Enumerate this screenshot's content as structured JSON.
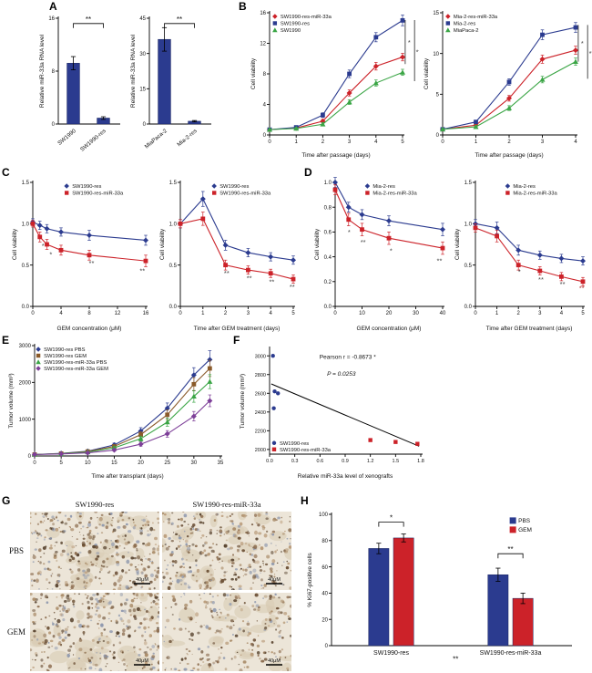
{
  "figure": {
    "labels": {
      "a": "A",
      "b": "B",
      "c": "C",
      "d": "D",
      "e": "E",
      "f": "F",
      "g": "G",
      "h": "H"
    }
  },
  "panel_g": {
    "columns": [
      "SW1990-res",
      "SW1990-res-miR-33a"
    ],
    "rows": [
      "PBS",
      "GEM"
    ],
    "scalebar": "40μM"
  },
  "chart_data": [
    {
      "id": "a-left",
      "type": "bar",
      "categories": [
        "SW1990",
        "SW1990-res"
      ],
      "values": [
        9.2,
        0.9
      ],
      "errors": [
        1.0,
        0.2
      ],
      "bar_color": "#2b3b8f",
      "rotate_cats": true,
      "ylabel": "Relative miR-33a RNA level",
      "ylim": [
        0,
        16
      ],
      "yticks": [
        0,
        8,
        16
      ],
      "m": {
        "l": 24,
        "r": 6,
        "t": 12,
        "b": 34
      },
      "brackets": [
        {
          "a": 0,
          "b": 1,
          "fy": 0.05,
          "label": "**"
        }
      ]
    },
    {
      "id": "a-right",
      "type": "bar",
      "categories": [
        "MiaPaca-2",
        "Mia-2-res"
      ],
      "values": [
        36,
        1.2
      ],
      "errors": [
        5,
        0.3
      ],
      "bar_color": "#2b3b8f",
      "rotate_cats": true,
      "ylabel": "Relative miR-33a RNA level",
      "ylim": [
        0,
        45
      ],
      "yticks": [
        0,
        15,
        30,
        45
      ],
      "m": {
        "l": 24,
        "r": 6,
        "t": 12,
        "b": 34
      },
      "brackets": [
        {
          "a": 0,
          "b": 1,
          "fy": 0.05,
          "label": "**"
        }
      ]
    },
    {
      "id": "b-left",
      "type": "line",
      "x": [
        0,
        1,
        2,
        3,
        4,
        5
      ],
      "series": [
        {
          "name": "SW1990-res-miR-33a",
          "color": "#cc2229",
          "marker": "diamond",
          "values": [
            0.7,
            0.9,
            1.8,
            5.5,
            9.0,
            10.2
          ],
          "errors": [
            0.15,
            0.15,
            0.25,
            0.4,
            0.5,
            0.5
          ]
        },
        {
          "name": "SW1990-res",
          "color": "#2b3b8f",
          "marker": "square",
          "values": [
            0.7,
            1.0,
            2.6,
            8.0,
            12.8,
            15.0
          ],
          "errors": [
            0.15,
            0.15,
            0.3,
            0.5,
            0.6,
            0.7
          ]
        },
        {
          "name": "SW1990",
          "color": "#3aa545",
          "marker": "triangle",
          "values": [
            0.7,
            0.85,
            1.4,
            4.3,
            6.8,
            8.2
          ],
          "errors": [
            0.1,
            0.1,
            0.2,
            0.3,
            0.4,
            0.4
          ]
        }
      ],
      "xlabel": "Time after passage (days)",
      "ylabel": "Cell viability",
      "xlim": [
        0,
        5
      ],
      "xticks": [
        0,
        1,
        2,
        3,
        4,
        5
      ],
      "ylim": [
        0,
        16
      ],
      "yticks": [
        0,
        4,
        8,
        12,
        16
      ],
      "m": {
        "l": 24,
        "r": 18,
        "t": 6,
        "b": 26
      },
      "legend": {
        "fx": 0.04,
        "fy": 0.0,
        "dy": 7.5
      },
      "vlines": [
        {
          "fx": 1.02,
          "fy1": 0.06,
          "fy2": 0.42
        },
        {
          "fx": 1.09,
          "fy1": 0.06,
          "fy2": 0.56
        }
      ],
      "notes": [
        {
          "fx": 1.05,
          "fy": 0.26,
          "text": "*"
        },
        {
          "fx": 1.12,
          "fy": 0.34,
          "text": "**"
        }
      ]
    },
    {
      "id": "b-right",
      "type": "line",
      "x": [
        0,
        1,
        2,
        3,
        4
      ],
      "series": [
        {
          "name": "Mia-2-res-miR-33a",
          "color": "#cc2229",
          "marker": "diamond",
          "values": [
            0.7,
            1.2,
            4.5,
            9.3,
            10.4
          ],
          "errors": [
            0.15,
            0.2,
            0.35,
            0.5,
            0.5
          ]
        },
        {
          "name": "Mia-2-res",
          "color": "#2b3b8f",
          "marker": "square",
          "values": [
            0.7,
            1.6,
            6.5,
            12.3,
            13.2
          ],
          "errors": [
            0.15,
            0.2,
            0.4,
            0.6,
            0.6
          ]
        },
        {
          "name": "MiaPaca-2",
          "color": "#3aa545",
          "marker": "triangle",
          "values": [
            0.7,
            1.0,
            3.3,
            6.8,
            9.0
          ],
          "errors": [
            0.1,
            0.15,
            0.3,
            0.4,
            0.45
          ]
        }
      ],
      "xlabel": "Time after passage (days)",
      "ylabel": "Cell viability",
      "xlim": [
        0,
        4
      ],
      "xticks": [
        0,
        1,
        2,
        3,
        4
      ],
      "ylim": [
        0,
        15
      ],
      "yticks": [
        0,
        5,
        10,
        15
      ],
      "m": {
        "l": 24,
        "r": 18,
        "t": 6,
        "b": 26
      },
      "legend": {
        "fx": 0.04,
        "fy": 0.0,
        "dy": 7.5
      },
      "vlines": [
        {
          "fx": 1.02,
          "fy1": 0.1,
          "fy2": 0.4
        },
        {
          "fx": 1.09,
          "fy1": 0.1,
          "fy2": 0.54
        }
      ],
      "notes": [
        {
          "fx": 1.05,
          "fy": 0.27,
          "text": "*"
        },
        {
          "fx": 1.12,
          "fy": 0.35,
          "text": "**"
        }
      ]
    },
    {
      "id": "c-left",
      "type": "line",
      "x": [
        0,
        1,
        2,
        4,
        8,
        16
      ],
      "series": [
        {
          "name": "SW1990-res",
          "color": "#2b3b8f",
          "marker": "diamond",
          "values": [
            1.02,
            0.98,
            0.94,
            0.9,
            0.86,
            0.8
          ],
          "errors": [
            0.04,
            0.05,
            0.05,
            0.05,
            0.06,
            0.06
          ]
        },
        {
          "name": "SW1990-res-miR-33a",
          "color": "#cc2229",
          "marker": "square",
          "values": [
            1.0,
            0.84,
            0.75,
            0.68,
            0.62,
            0.55
          ],
          "errors": [
            0.04,
            0.06,
            0.06,
            0.06,
            0.06,
            0.07
          ]
        }
      ],
      "xlabel": "GEM concentration (μM)",
      "ylabel": "Cell viability",
      "xlim": [
        0,
        16
      ],
      "xticks": [
        0,
        4,
        8,
        12,
        16
      ],
      "ylim": [
        0,
        1.5
      ],
      "yticks": [
        "0.0",
        "0.5",
        "1.0",
        "1.5"
      ],
      "m": {
        "l": 26,
        "r": 8,
        "t": 6,
        "b": 28
      },
      "legend": {
        "fx": 0.3,
        "fy": 0.0,
        "dy": 7.5
      },
      "notes": [
        {
          "fx": 0.09,
          "fy": 0.53,
          "text": "*"
        },
        {
          "fx": 0.16,
          "fy": 0.6,
          "text": "*"
        },
        {
          "fx": 0.52,
          "fy": 0.67,
          "text": "**"
        },
        {
          "fx": 0.97,
          "fy": 0.73,
          "text": "**"
        }
      ]
    },
    {
      "id": "c-right",
      "type": "line",
      "x": [
        0,
        1,
        2,
        3,
        4,
        5
      ],
      "series": [
        {
          "name": "SW1990-res",
          "color": "#2b3b8f",
          "marker": "diamond",
          "values": [
            1.0,
            1.3,
            0.74,
            0.65,
            0.6,
            0.56
          ],
          "errors": [
            0.05,
            0.09,
            0.06,
            0.05,
            0.05,
            0.05
          ]
        },
        {
          "name": "SW1990-res-miR-33a",
          "color": "#cc2229",
          "marker": "square",
          "values": [
            1.0,
            1.06,
            0.5,
            0.44,
            0.4,
            0.33
          ],
          "errors": [
            0.05,
            0.08,
            0.06,
            0.05,
            0.05,
            0.05
          ]
        }
      ],
      "xlabel": "Time after GEM treatment (days)",
      "ylabel": "Cell viability",
      "xlim": [
        0,
        5
      ],
      "xticks": [
        0,
        1,
        2,
        3,
        4,
        5
      ],
      "ylim": [
        0,
        1.5
      ],
      "yticks": [
        "0.0",
        "0.5",
        "1.0",
        "1.5"
      ],
      "m": {
        "l": 26,
        "r": 8,
        "t": 6,
        "b": 28
      },
      "legend": {
        "fx": 0.3,
        "fy": 0.0,
        "dy": 7.5
      },
      "notes": [
        {
          "fx": 0.41,
          "fy": 0.75,
          "text": "**"
        },
        {
          "fx": 0.61,
          "fy": 0.79,
          "text": "**"
        },
        {
          "fx": 0.81,
          "fy": 0.82,
          "text": "**"
        },
        {
          "fx": 0.99,
          "fy": 0.86,
          "text": "**"
        }
      ]
    },
    {
      "id": "d-left",
      "type": "line",
      "x": [
        0,
        5,
        10,
        20,
        40
      ],
      "series": [
        {
          "name": "Mia-2-res",
          "color": "#2b3b8f",
          "marker": "diamond",
          "values": [
            1.0,
            0.8,
            0.74,
            0.69,
            0.62
          ],
          "errors": [
            0.04,
            0.04,
            0.04,
            0.04,
            0.05
          ]
        },
        {
          "name": "Mia-2-res-miR-33a",
          "color": "#cc2229",
          "marker": "square",
          "values": [
            0.94,
            0.7,
            0.62,
            0.55,
            0.47
          ],
          "errors": [
            0.04,
            0.05,
            0.05,
            0.05,
            0.05
          ]
        }
      ],
      "xlabel": "GEM concentration (μM)",
      "ylabel": "Cell viability",
      "xlim": [
        0,
        40
      ],
      "xticks": [
        0,
        10,
        20,
        30,
        40
      ],
      "ylim": [
        0,
        1.0
      ],
      "yticks": [
        "0.0",
        "0.2",
        "0.4",
        "0.6",
        "0.8",
        "1.0"
      ],
      "m": {
        "l": 26,
        "r": 8,
        "t": 6,
        "b": 28
      },
      "legend": {
        "fx": 0.3,
        "fy": 0.0,
        "dy": 7.5
      },
      "notes": [
        {
          "fx": 0.13,
          "fy": 0.42,
          "text": "*"
        },
        {
          "fx": 0.26,
          "fy": 0.5,
          "text": "**"
        },
        {
          "fx": 0.52,
          "fy": 0.57,
          "text": "*"
        },
        {
          "fx": 0.97,
          "fy": 0.65,
          "text": "**"
        }
      ]
    },
    {
      "id": "d-right",
      "type": "line",
      "x": [
        0,
        1,
        2,
        3,
        4,
        5
      ],
      "series": [
        {
          "name": "Mia-2-res",
          "color": "#2b3b8f",
          "marker": "diamond",
          "values": [
            1.0,
            0.95,
            0.68,
            0.62,
            0.58,
            0.55
          ],
          "errors": [
            0.05,
            0.07,
            0.06,
            0.05,
            0.05,
            0.05
          ]
        },
        {
          "name": "Mia-2-res-miR-33a",
          "color": "#cc2229",
          "marker": "square",
          "values": [
            0.95,
            0.85,
            0.5,
            0.43,
            0.36,
            0.3
          ],
          "errors": [
            0.05,
            0.07,
            0.06,
            0.05,
            0.05,
            0.05
          ]
        }
      ],
      "xlabel": "Time after GEM treatment (days)",
      "ylabel": "Cell viability",
      "xlim": [
        0,
        5
      ],
      "xticks": [
        0,
        1,
        2,
        3,
        4,
        5
      ],
      "ylim": [
        0,
        1.5
      ],
      "yticks": [
        "0.0",
        "0.5",
        "1.0",
        "1.5"
      ],
      "m": {
        "l": 26,
        "r": 8,
        "t": 6,
        "b": 28
      },
      "legend": {
        "fx": 0.3,
        "fy": 0.0,
        "dy": 7.5
      },
      "notes": [
        {
          "fx": 0.41,
          "fy": 0.74,
          "text": "*"
        },
        {
          "fx": 0.61,
          "fy": 0.8,
          "text": "**"
        },
        {
          "fx": 0.81,
          "fy": 0.84,
          "text": "**"
        },
        {
          "fx": 0.99,
          "fy": 0.87,
          "text": "**",
          "color": "#b33a3a"
        }
      ]
    },
    {
      "id": "e",
      "type": "line",
      "x": [
        0,
        5,
        10,
        15,
        20,
        25,
        30,
        33
      ],
      "series": [
        {
          "name": "SW1990-res PBS",
          "color": "#2b3b8f",
          "marker": "diamond",
          "values": [
            40,
            70,
            130,
            300,
            680,
            1300,
            2200,
            2620
          ],
          "errors": [
            10,
            15,
            25,
            50,
            90,
            140,
            200,
            240
          ]
        },
        {
          "name": "SW1990-res GEM",
          "color": "#8a5a2a",
          "marker": "square",
          "values": [
            40,
            65,
            120,
            260,
            580,
            1120,
            1950,
            2380
          ],
          "errors": [
            10,
            15,
            25,
            45,
            80,
            130,
            180,
            220
          ]
        },
        {
          "name": "SW1990-res-miR-33a PBS",
          "color": "#3aa545",
          "marker": "triangle",
          "values": [
            40,
            60,
            105,
            220,
            470,
            920,
            1620,
            2020
          ],
          "errors": [
            10,
            12,
            20,
            40,
            70,
            110,
            160,
            190
          ]
        },
        {
          "name": "SW1990-res-miR-33a GEM",
          "color": "#7d3f98",
          "marker": "diamond",
          "values": [
            40,
            55,
            85,
            160,
            320,
            600,
            1080,
            1500
          ],
          "errors": [
            8,
            10,
            18,
            30,
            55,
            90,
            130,
            160
          ]
        }
      ],
      "xlabel": "Time after transplant (days)",
      "ylabel": "Tumor volume (mm³)",
      "xlim": [
        0,
        35
      ],
      "xticks": [
        0,
        5,
        10,
        15,
        20,
        25,
        30,
        35
      ],
      "ylim": [
        0,
        3000
      ],
      "yticks": [
        0,
        1000,
        2000,
        3000
      ],
      "m": {
        "l": 32,
        "r": 8,
        "t": 5,
        "b": 26
      },
      "legend": {
        "fx": 0.02,
        "fy": 0.0,
        "dy": 7
      }
    },
    {
      "id": "f",
      "type": "scatter",
      "series": [
        {
          "name": "SW1990-res",
          "color": "#2b3b8f",
          "marker": "circle",
          "points": [
            [
              0.04,
              3000
            ],
            [
              0.06,
              2620
            ],
            [
              0.1,
              2600
            ],
            [
              0.05,
              2440
            ]
          ]
        },
        {
          "name": "SW1990-res-miR-33a",
          "color": "#cc2229",
          "marker": "square",
          "points": [
            [
              1.2,
              2100
            ],
            [
              1.5,
              2080
            ],
            [
              1.76,
              2060
            ]
          ]
        }
      ],
      "fit": {
        "x1": 0.02,
        "y1": 2700,
        "x2": 1.78,
        "y2": 2035
      },
      "stats": {
        "pearson": "Pearson r = -0.8673 *",
        "pvalue": "P = 0.0253"
      },
      "xlabel": "Relative miR-33a  level of xenografts",
      "ylabel": "Tumor volume (mm³)",
      "xlim": [
        0,
        1.8
      ],
      "xticks": [
        "0.0",
        "0.3",
        "0.6",
        "0.9",
        "1.2",
        "1.5",
        "1.8"
      ],
      "ylim": [
        1950,
        3080
      ],
      "yticks": [
        2000,
        2200,
        2400,
        2600,
        2800,
        3000
      ],
      "ts": 5.5,
      "m": {
        "l": 36,
        "r": 8,
        "t": 8,
        "b": 28
      },
      "legend": {
        "fx": 0.03,
        "fy": 0.86,
        "dy": 7
      },
      "notes": [
        {
          "fx": 0.33,
          "fy": 0.1,
          "text": "Pearson r = -0.8673 *",
          "size": 6.5,
          "anchor": "start",
          "color": "#111"
        },
        {
          "fx": 0.38,
          "fy": 0.26,
          "text": "P = 0.0253",
          "size": 6.5,
          "anchor": "start",
          "italic": true,
          "color": "#111"
        }
      ]
    },
    {
      "id": "h",
      "type": "bar",
      "categories": [
        "SW1990-res",
        "SW1990-res-miR-33a"
      ],
      "series": [
        {
          "name": "PBS",
          "color": "#2b3b8f",
          "values": [
            74,
            54
          ],
          "errors": [
            4,
            5
          ]
        },
        {
          "name": "GEM",
          "color": "#cc2229",
          "values": [
            82,
            36
          ],
          "errors": [
            3,
            4
          ]
        }
      ],
      "bwf": 0.17,
      "ylabel": "% Ki67-positive cells",
      "ylim": [
        0,
        100
      ],
      "yticks": [
        0,
        20,
        40,
        60,
        80,
        100
      ],
      "m": {
        "l": 30,
        "r": 8,
        "t": 14,
        "b": 24
      },
      "legend": {
        "fx": 0.76,
        "fy": 0.02,
        "dy": 10,
        "swatch": true,
        "fs": 6.5
      },
      "brackets": [
        {
          "a": [
            0,
            0
          ],
          "b": [
            0,
            1
          ],
          "fy": 0.06,
          "label": "*"
        },
        {
          "a": [
            1,
            0
          ],
          "b": [
            1,
            1
          ],
          "fy": 0.3,
          "label": "**"
        }
      ],
      "notes": [
        {
          "fx": 0.52,
          "fy": 1.12,
          "text": "**",
          "size": 8,
          "color": "#111"
        }
      ]
    }
  ]
}
